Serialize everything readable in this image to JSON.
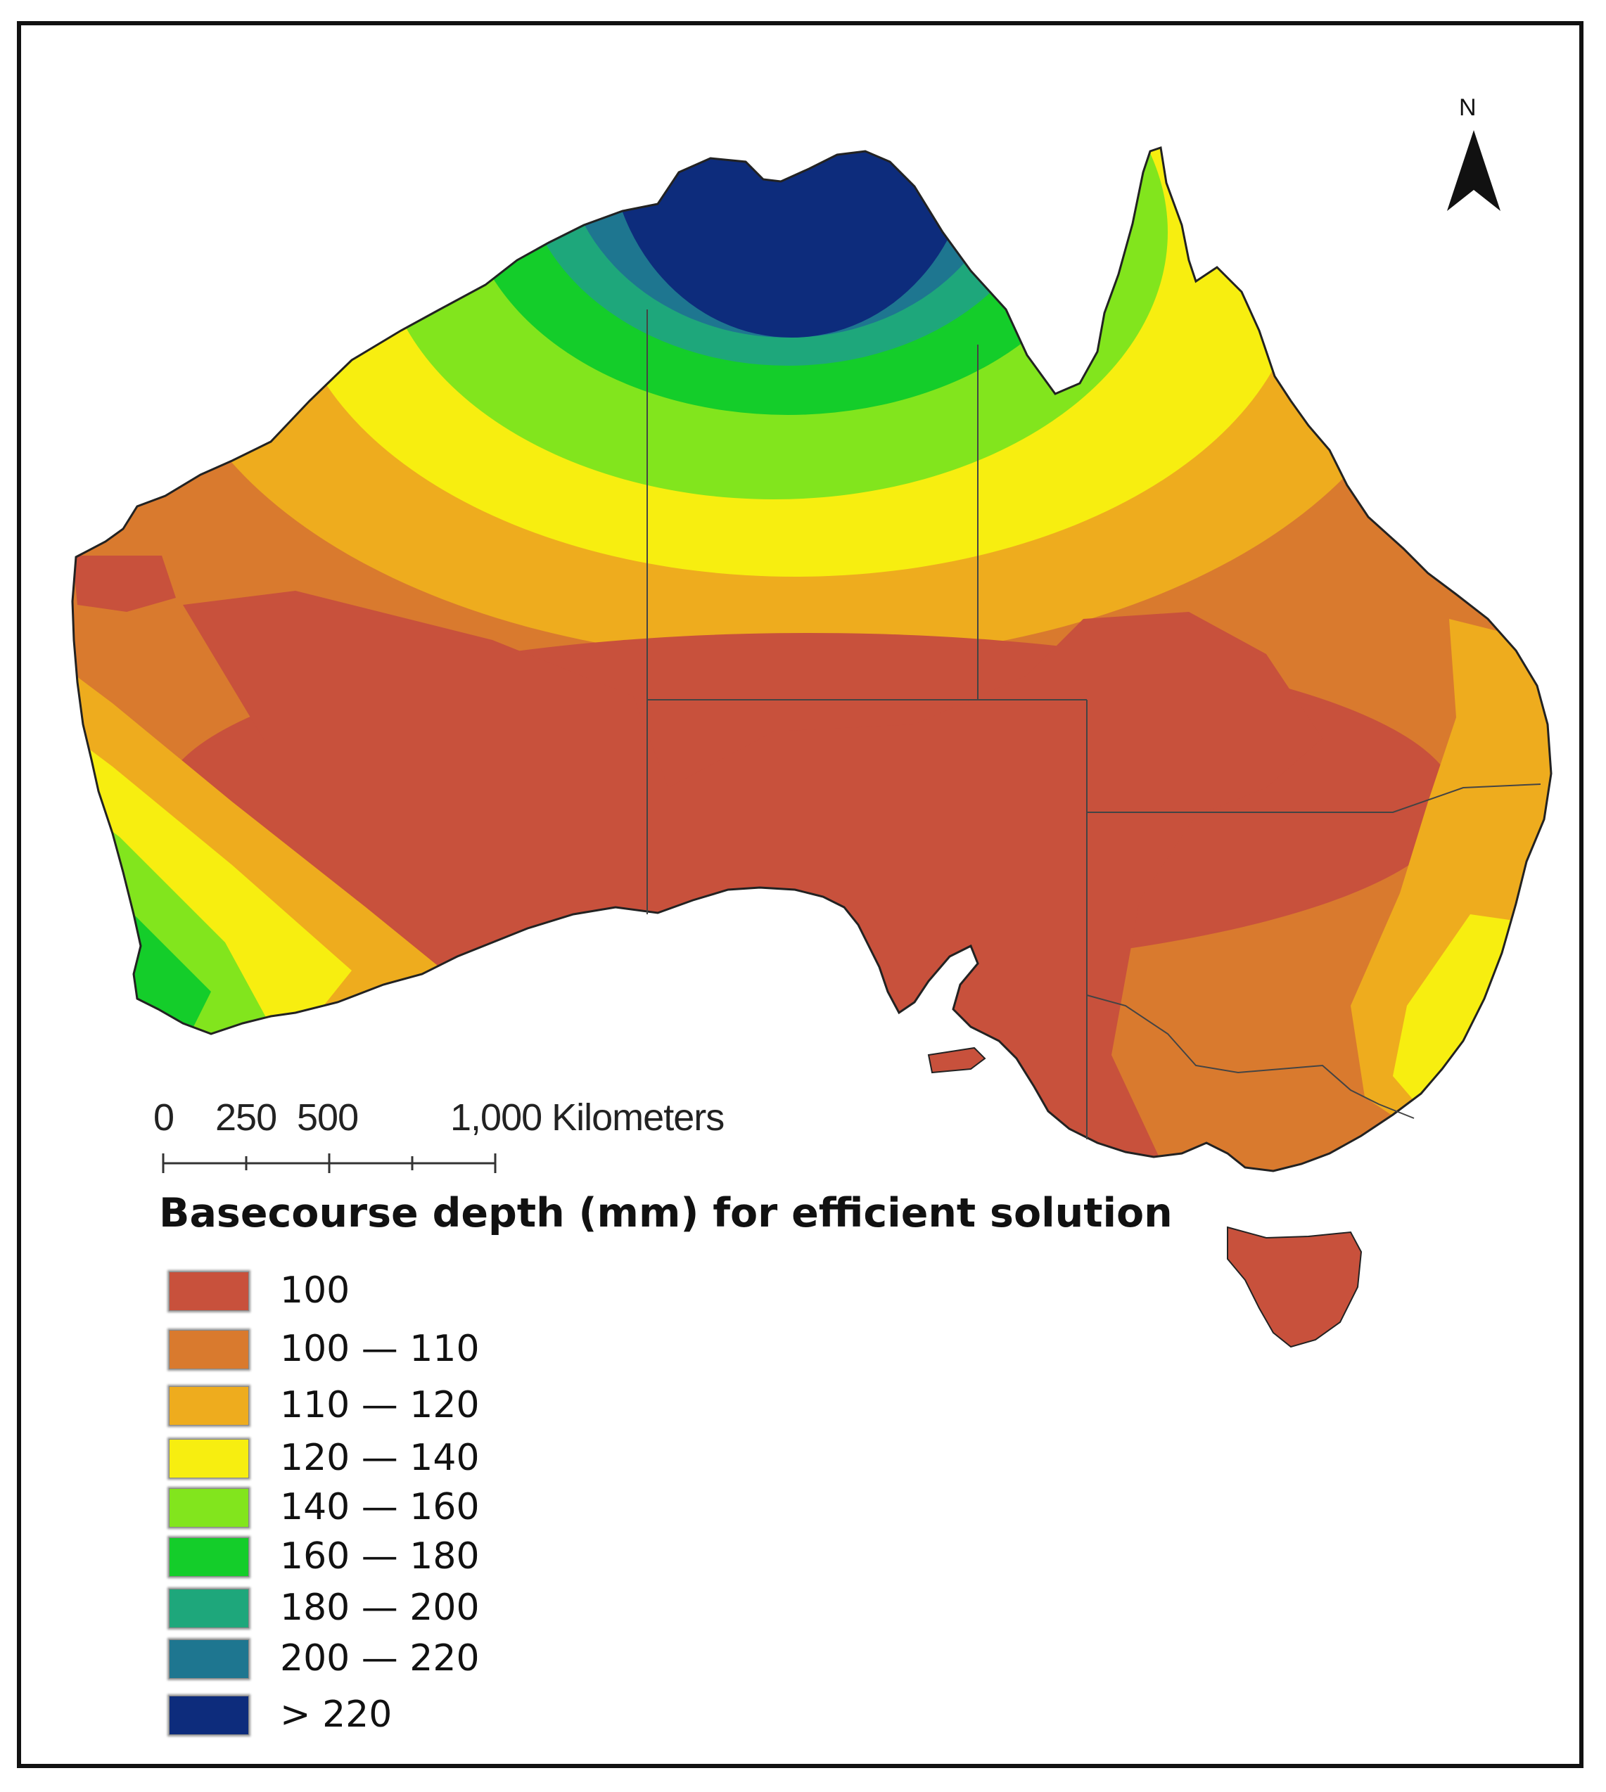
{
  "north_label": "N",
  "scale_bar": {
    "labels": [
      "0",
      "250",
      "500",
      "1,000 Kilometers"
    ]
  },
  "legend": {
    "title": "Basecourse depth (mm) for efficient solution",
    "items": [
      {
        "label": "100",
        "color": "#c8513c"
      },
      {
        "label": "100 — 110",
        "color": "#d97a2e"
      },
      {
        "label": "110 — 120",
        "color": "#eeac1e"
      },
      {
        "label": "120 — 140",
        "color": "#f7ee10"
      },
      {
        "label": "140 — 160",
        "color": "#82e51d"
      },
      {
        "label": "160 — 180",
        "color": "#14cd2a"
      },
      {
        "label": "180 — 200",
        "color": "#1ea77b"
      },
      {
        "label": "200 — 220",
        "color": "#1e7690"
      },
      {
        "label": "> 220",
        "color": "#0d2c7c"
      }
    ]
  }
}
